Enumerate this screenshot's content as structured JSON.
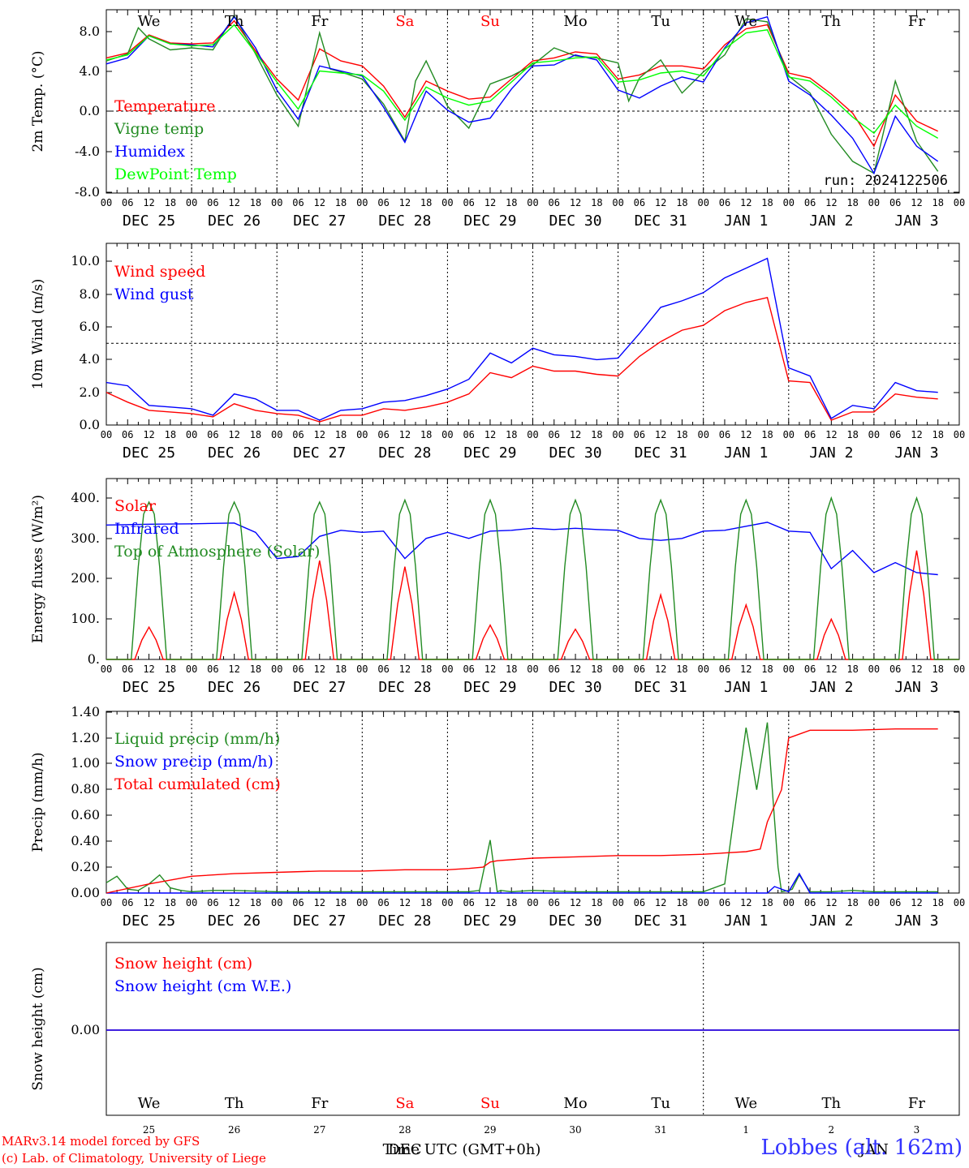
{
  "run_label": "run: 2024122506",
  "days": [
    "We",
    "Th",
    "Fr",
    "Sa",
    "Su",
    "Mo",
    "Tu",
    "We",
    "Th",
    "Fr"
  ],
  "weekend_days": [
    "Sa",
    "Su"
  ],
  "hour_ticks": [
    "00",
    "06",
    "12",
    "18"
  ],
  "dates": [
    "DEC 25",
    "DEC 26",
    "DEC 27",
    "DEC 28",
    "DEC 29",
    "DEC 30",
    "DEC 31",
    "JAN  1",
    "JAN  2",
    "JAN  3"
  ],
  "bottom_day_numbers": [
    "25",
    "26",
    "27",
    "28",
    "29",
    "30",
    "31",
    "1",
    "2",
    "3"
  ],
  "bottom_month_labels": [
    "DEC",
    "JAN"
  ],
  "x_title": "Time UTC (GMT+0h)",
  "credits": {
    "line1": "MARv3.14 model forced by GFS",
    "line2": "(c) Lab. of Climatology, University of Liege"
  },
  "station": "Lobbes (alt. 162m)",
  "colors": {
    "red": "#ff0000",
    "green": "#228b22",
    "blue": "#0000ff",
    "lime": "#00ff00",
    "station": "#3333ff"
  },
  "chart_data": [
    {
      "type": "line",
      "ylabel": "2m Temp. (°C)",
      "ylim": [
        -8,
        10
      ],
      "yticks": [
        "8.0",
        "4.0",
        "0.0",
        "-4.0",
        "-8.0"
      ],
      "hline": 0,
      "x_unit": "hours since DEC 25 00 UTC",
      "series": [
        {
          "name": "Temperature",
          "color": "red",
          "x": [
            0,
            6,
            12,
            18,
            24,
            30,
            36,
            42,
            48,
            54,
            60,
            66,
            72,
            78,
            84,
            90,
            96,
            102,
            108,
            114,
            120,
            126,
            132,
            138,
            144,
            150,
            156,
            162,
            168,
            174,
            180,
            186,
            192,
            198,
            204,
            210,
            216,
            222,
            228,
            234
          ],
          "values": [
            5.3,
            5.8,
            7.6,
            6.8,
            6.7,
            6.8,
            9.0,
            6.0,
            3.2,
            1.1,
            6.2,
            5.0,
            4.5,
            2.5,
            -0.6,
            3.0,
            2.0,
            1.2,
            1.4,
            3.2,
            5.0,
            5.3,
            5.9,
            5.7,
            3.2,
            3.6,
            4.5,
            4.5,
            4.2,
            6.6,
            8.2,
            8.6,
            3.8,
            3.3,
            1.7,
            -0.2,
            -3.5,
            1.6,
            -1.0,
            -2.0
          ]
        },
        {
          "name": "Vigne temp",
          "color": "green",
          "x": [
            0,
            6,
            9,
            12,
            18,
            24,
            30,
            36,
            42,
            48,
            54,
            60,
            63,
            66,
            72,
            78,
            84,
            87,
            90,
            96,
            102,
            108,
            114,
            120,
            126,
            132,
            138,
            144,
            147,
            150,
            156,
            162,
            168,
            174,
            180,
            186,
            192,
            198,
            204,
            210,
            216,
            222,
            228,
            234
          ],
          "values": [
            5.0,
            5.7,
            8.3,
            7.2,
            6.1,
            6.3,
            6.1,
            9.5,
            5.7,
            1.6,
            -1.5,
            7.8,
            4.2,
            3.9,
            3.2,
            0.7,
            -3.0,
            3.0,
            5.0,
            0.5,
            -1.7,
            2.7,
            3.5,
            4.6,
            6.3,
            5.5,
            5.3,
            4.8,
            1.0,
            3.3,
            5.1,
            1.8,
            3.9,
            5.6,
            9.2,
            8.9,
            3.5,
            1.8,
            -2.3,
            -5.0,
            -6.2,
            3.0,
            -3.0,
            -6.0
          ]
        },
        {
          "name": "Humidex",
          "color": "blue",
          "x": [
            0,
            6,
            12,
            18,
            24,
            30,
            36,
            42,
            48,
            54,
            60,
            66,
            72,
            78,
            84,
            90,
            96,
            102,
            108,
            114,
            120,
            126,
            132,
            138,
            144,
            150,
            156,
            162,
            168,
            174,
            180,
            186,
            192,
            198,
            204,
            210,
            216,
            222,
            228,
            234
          ],
          "values": [
            4.7,
            5.3,
            7.5,
            6.7,
            6.6,
            6.4,
            9.4,
            6.3,
            2.1,
            -0.8,
            4.5,
            4.0,
            3.5,
            0.4,
            -3.1,
            2.0,
            0.1,
            -1.1,
            -0.7,
            2.2,
            4.5,
            4.6,
            5.6,
            5.1,
            2.1,
            1.3,
            2.5,
            3.4,
            2.9,
            6.3,
            8.8,
            9.4,
            3.0,
            1.6,
            -0.4,
            -2.7,
            -6.2,
            -0.5,
            -3.5,
            -5.0
          ]
        },
        {
          "name": "DewPoint Temp",
          "color": "lime",
          "x": [
            0,
            6,
            12,
            18,
            24,
            30,
            36,
            42,
            48,
            54,
            60,
            66,
            72,
            78,
            84,
            90,
            96,
            102,
            108,
            114,
            120,
            126,
            132,
            138,
            144,
            150,
            156,
            162,
            168,
            174,
            180,
            186,
            192,
            198,
            204,
            210,
            216,
            222,
            228,
            234
          ],
          "values": [
            5.1,
            5.6,
            7.5,
            6.7,
            6.5,
            6.6,
            8.6,
            5.8,
            2.9,
            0.2,
            4.0,
            3.8,
            3.6,
            2.0,
            -0.9,
            2.4,
            1.3,
            0.6,
            1.0,
            2.9,
            4.8,
            5.0,
            5.3,
            5.4,
            2.9,
            3.1,
            3.8,
            4.0,
            3.5,
            6.2,
            7.8,
            8.1,
            3.4,
            3.0,
            1.4,
            -0.6,
            -2.2,
            0.6,
            -1.5,
            -2.7
          ]
        }
      ]
    },
    {
      "type": "line",
      "ylabel": "10m Wind (m/s)",
      "ylim": [
        0,
        11
      ],
      "yticks": [
        "10.0",
        "8.0",
        "6.0",
        "4.0",
        "2.0",
        "0.0"
      ],
      "hline": 5,
      "x_unit": "hours since DEC 25 00 UTC",
      "series": [
        {
          "name": "Wind speed",
          "color": "red",
          "x": [
            0,
            6,
            12,
            18,
            24,
            30,
            36,
            42,
            48,
            54,
            60,
            66,
            72,
            78,
            84,
            90,
            96,
            102,
            108,
            114,
            120,
            126,
            132,
            138,
            144,
            150,
            156,
            162,
            168,
            174,
            180,
            186,
            192,
            198,
            204,
            210,
            216,
            222,
            228,
            234
          ],
          "values": [
            2.0,
            1.4,
            0.9,
            0.8,
            0.7,
            0.5,
            1.3,
            0.9,
            0.7,
            0.6,
            0.2,
            0.6,
            0.6,
            1.0,
            0.9,
            1.1,
            1.4,
            1.9,
            3.2,
            2.9,
            3.6,
            3.3,
            3.3,
            3.1,
            3.0,
            4.2,
            5.1,
            5.8,
            6.1,
            7.0,
            7.5,
            7.8,
            2.7,
            2.6,
            0.3,
            0.8,
            0.8,
            1.9,
            1.7,
            1.6
          ]
        },
        {
          "name": "Wind gust",
          "color": "blue",
          "x": [
            0,
            6,
            12,
            18,
            24,
            30,
            36,
            42,
            48,
            54,
            60,
            66,
            72,
            78,
            84,
            90,
            96,
            102,
            108,
            114,
            120,
            126,
            132,
            138,
            144,
            150,
            156,
            162,
            168,
            174,
            180,
            186,
            192,
            198,
            204,
            210,
            216,
            222,
            228,
            234
          ],
          "values": [
            2.6,
            2.4,
            1.2,
            1.1,
            1.0,
            0.6,
            1.9,
            1.6,
            0.9,
            0.9,
            0.3,
            0.9,
            1.0,
            1.4,
            1.5,
            1.8,
            2.2,
            2.8,
            4.4,
            3.8,
            4.7,
            4.3,
            4.2,
            4.0,
            4.1,
            5.6,
            7.2,
            7.6,
            8.1,
            9.0,
            9.6,
            10.2,
            3.5,
            3.0,
            0.4,
            1.2,
            1.0,
            2.6,
            2.1,
            2.0
          ]
        }
      ]
    },
    {
      "type": "line",
      "ylabel": "Energy fluxes (W/m²)",
      "ylim": [
        0,
        450
      ],
      "yticks": [
        "400.",
        "300.",
        "200.",
        "100.",
        "0."
      ],
      "x_unit": "hours since DEC 25 00 UTC",
      "day_peaks": {
        "Solar": [
          80,
          165,
          245,
          230,
          85,
          75,
          160,
          135,
          100,
          270
        ],
        "Top of Atmosphere (Solar)": [
          390,
          390,
          390,
          395,
          395,
          395,
          395,
          395,
          400,
          400
        ]
      },
      "series": [
        {
          "name": "Solar",
          "color": "red"
        },
        {
          "name": "Infrared",
          "color": "blue",
          "x": [
            0,
            12,
            24,
            36,
            42,
            48,
            54,
            60,
            66,
            72,
            78,
            84,
            90,
            96,
            102,
            108,
            114,
            120,
            126,
            132,
            138,
            144,
            150,
            156,
            162,
            168,
            174,
            180,
            186,
            192,
            198,
            204,
            210,
            216,
            222,
            228,
            234
          ],
          "values": [
            333,
            335,
            336,
            338,
            315,
            250,
            255,
            305,
            320,
            315,
            318,
            250,
            300,
            315,
            300,
            318,
            320,
            325,
            322,
            325,
            322,
            320,
            300,
            295,
            300,
            318,
            320,
            330,
            340,
            318,
            315,
            225,
            270,
            215,
            240,
            215,
            210
          ]
        },
        {
          "name": "Top of Atmosphere (Solar)",
          "color": "green"
        }
      ]
    },
    {
      "type": "line",
      "ylabel": "Precip (mm/h)",
      "ylim": [
        0,
        1.4
      ],
      "yticks": [
        "1.40",
        "1.20",
        "1.00",
        "0.80",
        "0.60",
        "0.40",
        "0.20",
        "0.00"
      ],
      "x_unit": "hours since DEC 25 00 UTC",
      "series": [
        {
          "name": "Liquid precip (mm/h)",
          "color": "green",
          "x": [
            0,
            3,
            6,
            9,
            12,
            15,
            18,
            21,
            24,
            30,
            36,
            48,
            60,
            72,
            84,
            96,
            102,
            105,
            108,
            110,
            111,
            114,
            120,
            132,
            144,
            156,
            168,
            174,
            180,
            183,
            186,
            189,
            190,
            192,
            193,
            195,
            198,
            204,
            210,
            216,
            222,
            228,
            234
          ],
          "values": [
            0.08,
            0.13,
            0.03,
            0.02,
            0.07,
            0.14,
            0.04,
            0.02,
            0.01,
            0.02,
            0.02,
            0.01,
            0.01,
            0.01,
            0.01,
            0.01,
            0.01,
            0.02,
            0.41,
            0.01,
            0.02,
            0.01,
            0.02,
            0.01,
            0.01,
            0.01,
            0.01,
            0.07,
            1.28,
            0.8,
            1.32,
            0.2,
            0.01,
            0.02,
            0.03,
            0.14,
            0.01,
            0.01,
            0.02,
            0.01,
            0.01,
            0.01,
            0.01
          ]
        },
        {
          "name": "Snow precip (mm/h)",
          "color": "blue",
          "x": [
            0,
            186,
            188,
            192,
            195,
            198,
            234
          ],
          "values": [
            0,
            0,
            0.05,
            0.01,
            0.15,
            0,
            0
          ]
        },
        {
          "name": "Total cumulated (cm)",
          "color": "red",
          "x": [
            0,
            12,
            24,
            36,
            48,
            60,
            72,
            84,
            96,
            102,
            106,
            108,
            110,
            120,
            132,
            144,
            156,
            168,
            174,
            180,
            184,
            186,
            190,
            192,
            198,
            210,
            222,
            234
          ],
          "values": [
            0.0,
            0.07,
            0.13,
            0.15,
            0.16,
            0.17,
            0.17,
            0.18,
            0.18,
            0.19,
            0.2,
            0.24,
            0.25,
            0.27,
            0.28,
            0.29,
            0.29,
            0.3,
            0.31,
            0.32,
            0.34,
            0.55,
            0.8,
            1.2,
            1.26,
            1.26,
            1.27,
            1.27
          ]
        }
      ]
    },
    {
      "type": "line",
      "ylabel": "Snow height (cm)",
      "ylim": [
        -1,
        1
      ],
      "yticks": [
        "0.00"
      ],
      "x_unit": "hours since DEC 25 00 UTC",
      "series": [
        {
          "name": "Snow height (cm)",
          "color": "red",
          "x": [
            0,
            240
          ],
          "values": [
            0,
            0
          ]
        },
        {
          "name": "Snow height (cm W.E.)",
          "color": "blue",
          "x": [
            0,
            240
          ],
          "values": [
            0,
            0
          ]
        }
      ]
    }
  ]
}
